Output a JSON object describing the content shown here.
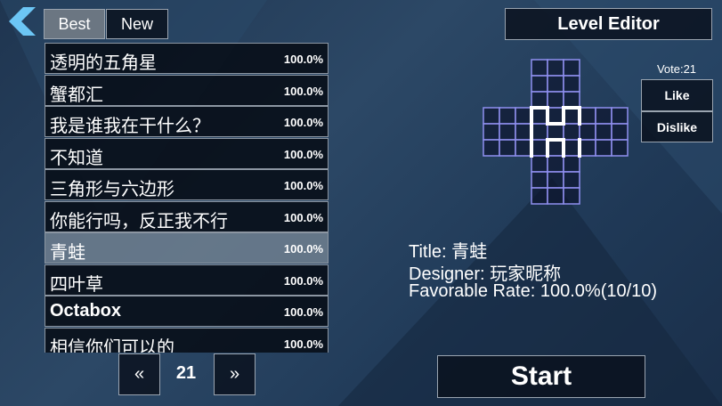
{
  "tabs": [
    "Best",
    "New"
  ],
  "levels": [
    {
      "name": "透明的五角星",
      "rate": "100.0%"
    },
    {
      "name": "蟹都汇",
      "rate": "100.0%"
    },
    {
      "name": "我是谁我在干什么？",
      "rate": "100.0%"
    },
    {
      "name": "不知道",
      "rate": "100.0%"
    },
    {
      "name": "三角形与六边形",
      "rate": "100.0%"
    },
    {
      "name": "你能行吗，反正我不行",
      "rate": "100.0%"
    },
    {
      "name": "青蛙",
      "rate": "100.0%"
    },
    {
      "name": "四叶草",
      "rate": "100.0%"
    },
    {
      "name": "Octabox",
      "rate": "100.0%"
    },
    {
      "name": "相信你们可以的",
      "rate": "100.0%"
    }
  ],
  "pagination": {
    "prev": "«",
    "page": "21",
    "next": "»"
  },
  "level_editor": "Level Editor",
  "vote": "Vote:21",
  "like": "Like",
  "dislike": "Dislike",
  "details": [
    {
      "label": "Title:",
      "value": "青蛙"
    },
    {
      "label": "Designer:",
      "value": "玩家昵称"
    },
    {
      "label": "Favorable Rate:",
      "value": "100.0%(10/10)"
    }
  ],
  "start": "Start"
}
